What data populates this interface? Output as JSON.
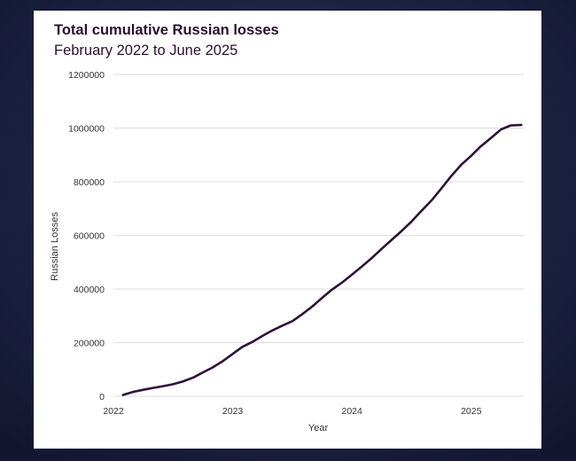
{
  "title": "Total cumulative Russian losses",
  "subtitle": "February 2022 to June 2025",
  "colors": {
    "background": "#1b2040",
    "card": "#ffffff",
    "line": "#2e1238",
    "grid": "#dddddd",
    "text": "#2a0f2e"
  },
  "chart_data": {
    "type": "line",
    "title": "Total cumulative Russian losses",
    "subtitle": "February 2022 to June 2025",
    "xlabel": "Year",
    "ylabel": "Russian Losses",
    "xlim": [
      2022.0,
      2025.44
    ],
    "ylim": [
      0,
      1200000
    ],
    "xticks": [
      2022,
      2023,
      2024,
      2025
    ],
    "xtick_labels": [
      "2022",
      "2023",
      "2024",
      "2025"
    ],
    "yticks": [
      0,
      200000,
      400000,
      600000,
      800000,
      1000000,
      1200000
    ],
    "ytick_labels": [
      "0",
      "200000",
      "400000",
      "600000",
      "800000",
      "1000000",
      "1200000"
    ],
    "grid": "horizontal",
    "series": [
      {
        "x": [
          2022.08,
          2022.17,
          2022.25,
          2022.33,
          2022.42,
          2022.5,
          2022.58,
          2022.67,
          2022.75,
          2022.83,
          2022.92,
          2023.0,
          2023.08,
          2023.17,
          2023.25,
          2023.33,
          2023.42,
          2023.5,
          2023.58,
          2023.67,
          2023.75,
          2023.83,
          2023.92,
          2024.0,
          2024.08,
          2024.17,
          2024.25,
          2024.33,
          2024.42,
          2024.5,
          2024.58,
          2024.67,
          2024.75,
          2024.83,
          2024.92,
          2025.0,
          2025.08,
          2025.17,
          2025.25,
          2025.33,
          2025.42
        ],
        "y": [
          5000,
          17000,
          24000,
          31000,
          38000,
          45000,
          55000,
          70000,
          89000,
          107000,
          132000,
          158000,
          184000,
          204000,
          225000,
          245000,
          264000,
          280000,
          305000,
          336000,
          367000,
          397000,
          425000,
          454000,
          483000,
          517000,
          550000,
          582000,
          618000,
          652000,
          690000,
          732000,
          775000,
          820000,
          865000,
          897000,
          932000,
          965000,
          995000,
          1010000,
          1012000
        ]
      }
    ]
  }
}
